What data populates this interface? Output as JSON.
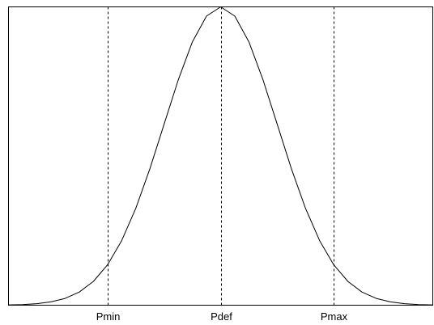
{
  "chart_data": {
    "type": "line",
    "x": [
      -3.75,
      -3.5,
      -3.25,
      -3,
      -2.75,
      -2.5,
      -2.25,
      -2,
      -1.75,
      -1.5,
      -1.25,
      -1,
      -0.75,
      -0.5,
      -0.25,
      0,
      0.25,
      0.5,
      0.75,
      1,
      1.25,
      1.5,
      1.75,
      2,
      2.25,
      2.5,
      2.75,
      3,
      3.25,
      3.5,
      3.75
    ],
    "series": [
      {
        "color": "#000000",
        "values": [
          0.00088,
          0.0022,
          0.0051,
          0.0111,
          0.0228,
          0.0439,
          0.0796,
          0.1353,
          0.2163,
          0.3247,
          0.4578,
          0.6065,
          0.7548,
          0.8825,
          0.9692,
          1,
          0.9692,
          0.8825,
          0.7548,
          0.6065,
          0.4578,
          0.3247,
          0.2163,
          0.1353,
          0.0796,
          0.0439,
          0.0228,
          0.0111,
          0.0051,
          0.0022,
          0.00088
        ]
      }
    ],
    "xlim": [
      -3.75,
      3.75
    ],
    "ylim": [
      0,
      1
    ],
    "xticks": [
      {
        "value": -2,
        "label": "Pmin"
      },
      {
        "value": 0,
        "label": "Pdef"
      },
      {
        "value": 2,
        "label": "Pmax"
      }
    ],
    "grid": true
  }
}
